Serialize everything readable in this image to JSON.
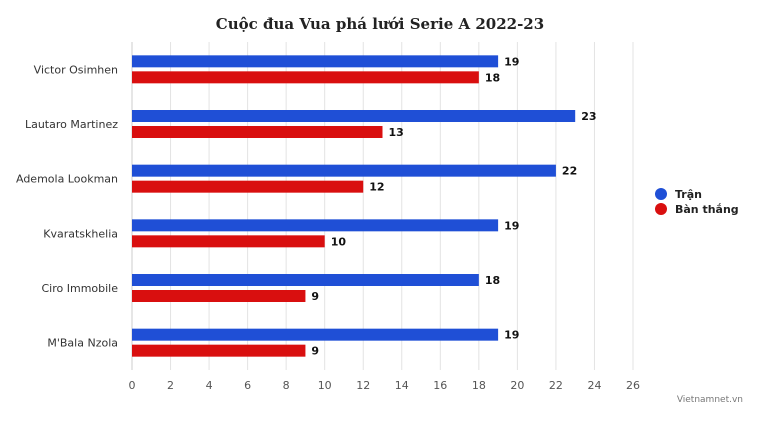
{
  "chart_data": {
    "type": "bar",
    "orientation": "horizontal",
    "title": "Cuộc đua Vua phá lưới Serie A 2022-23",
    "categories": [
      "Victor Osimhen",
      "Lautaro Martinez",
      "Ademola Lookman",
      "Kvaratskhelia",
      "Ciro Immobile",
      "M'Bala Nzola"
    ],
    "series": [
      {
        "name": "Trận",
        "values": [
          19,
          23,
          22,
          19,
          18,
          19
        ],
        "color": "#1f4fd6"
      },
      {
        "name": "Bàn thắng",
        "values": [
          18,
          13,
          12,
          10,
          9,
          9
        ],
        "color": "#d90f0f"
      }
    ],
    "xlim": [
      0,
      26
    ],
    "xticks": [
      "0",
      "2",
      "4",
      "6",
      "8",
      "10",
      "12",
      "14",
      "16",
      "18",
      "20",
      "22",
      "24",
      "26"
    ],
    "xlabel": "",
    "ylabel": "",
    "grid": true,
    "legend_position": "right",
    "data_labels": true
  },
  "credit": "Vietnamnet.vn"
}
